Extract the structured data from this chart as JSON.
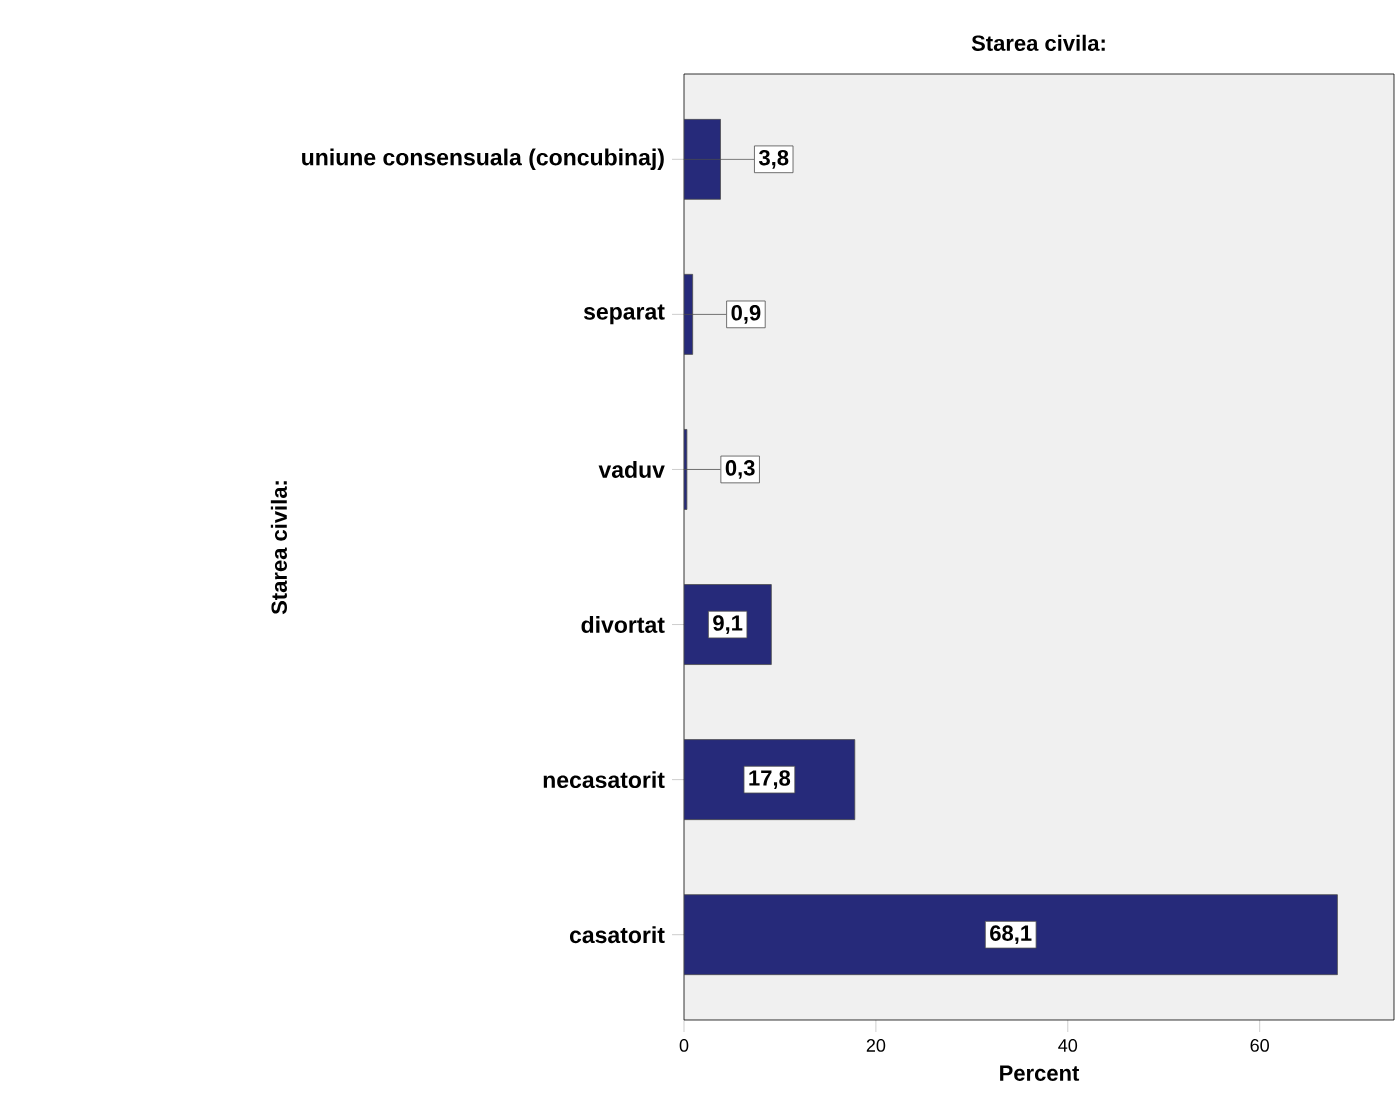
{
  "chart_data": {
    "type": "bar",
    "orientation": "horizontal",
    "title": "Starea civila:",
    "xlabel": "Percent",
    "ylabel": "Starea civila:",
    "categories": [
      "uniune consensuala (concubinaj)",
      "separat",
      "vaduv",
      "divortat",
      "necasatorit",
      "casatorit"
    ],
    "values": [
      3.8,
      0.9,
      0.3,
      9.1,
      17.8,
      68.1
    ],
    "value_labels": [
      "3,8",
      "0,9",
      "0,3",
      "9,1",
      "17,8",
      "68,1"
    ],
    "color": "#262a7a",
    "xlim": [
      0,
      74
    ],
    "xticks": [
      0,
      20,
      40,
      60
    ]
  }
}
